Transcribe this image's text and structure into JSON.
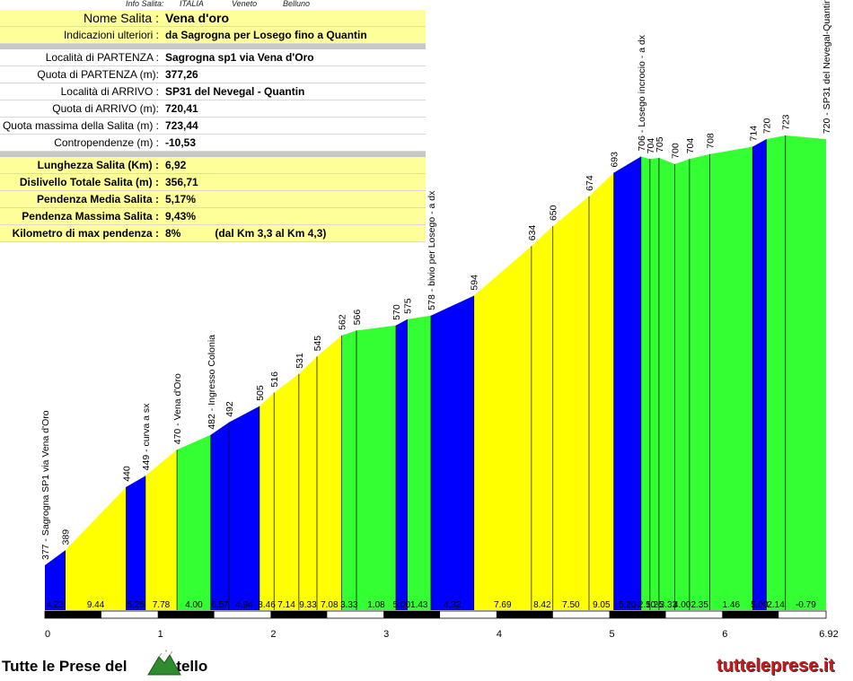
{
  "header": {
    "info_label": "Info Salita:",
    "country": "ITALIA",
    "region": "Veneto",
    "province": "Belluno"
  },
  "info": {
    "name_label": "Nome Salita :",
    "name": "Vena d'oro",
    "notes_label": "Indicazioni ulteriori :",
    "notes": "da Sagrogna per Losego fino a Quantin",
    "start_place_label": "Località di PARTENZA :",
    "start_place": "Sagrogna sp1 via Vena d'Oro",
    "start_alt_label": "Quota di PARTENZA (m):",
    "start_alt": "377,26",
    "end_place_label": "Località di ARRIVO :",
    "end_place": "SP31 del Nevegal - Quantin",
    "end_alt_label": "Quota di ARRIVO (m):",
    "end_alt": "720,41",
    "max_alt_label": "Quota massima della Salita (m) :",
    "max_alt": "723,44",
    "counter_label": "Contropendenze (m) :",
    "counter": "-10,53"
  },
  "stats": {
    "length_label": "Lunghezza Salita (Km) :",
    "length": "6,92",
    "gain_label": "Dislivello Totale Salita (m) :",
    "gain": "356,71",
    "avg_label": "Pendenza Media Salita :",
    "avg": "5,17%",
    "max_label": "Pendenza Massima Salita :",
    "max": "9,43%",
    "maxkm_label": "Kilometro di max pendenza :",
    "maxkm": "8%",
    "maxkm_range": "(dal Km 3,3 al Km 4,3)"
  },
  "footer": {
    "left_before": "Tutte le Prese del",
    "left_after": "ontello",
    "right": "tutteleprese.it"
  },
  "colors": {
    "blue": "#0000ff",
    "yellow": "#ffff00",
    "green": "#33ff33",
    "info_bg": "#ffff99",
    "footer_red": "#cc1a1a"
  },
  "chart_data": {
    "type": "area",
    "xlim": [
      0,
      6.92
    ],
    "x_ticks": [
      "0",
      "1",
      "2",
      "3",
      "4",
      "5",
      "6",
      "6.92"
    ],
    "x_tick_values": [
      0,
      1,
      2,
      3,
      4,
      5,
      6,
      6.92
    ],
    "ylim": [
      320,
      780
    ],
    "points": [
      {
        "x": 0.0,
        "y": 377,
        "label": "377 - Sagrogna SP1 via Vena d'Oro"
      },
      {
        "x": 0.18,
        "y": 389,
        "label": "389"
      },
      {
        "x": 0.72,
        "y": 440,
        "label": "440"
      },
      {
        "x": 0.89,
        "y": 449,
        "label": "449 - curva a sx"
      },
      {
        "x": 1.17,
        "y": 470,
        "label": "470 - Vena d'Oro"
      },
      {
        "x": 1.47,
        "y": 482,
        "label": "482 - Ingresso Colonia"
      },
      {
        "x": 1.63,
        "y": 492,
        "label": "492"
      },
      {
        "x": 1.9,
        "y": 505,
        "label": "505"
      },
      {
        "x": 2.03,
        "y": 516,
        "label": "516"
      },
      {
        "x": 2.25,
        "y": 531,
        "label": "531"
      },
      {
        "x": 2.41,
        "y": 545,
        "label": "545"
      },
      {
        "x": 2.63,
        "y": 562,
        "label": "562"
      },
      {
        "x": 2.76,
        "y": 566,
        "label": "566"
      },
      {
        "x": 3.11,
        "y": 570,
        "label": "570"
      },
      {
        "x": 3.21,
        "y": 575,
        "label": "575"
      },
      {
        "x": 3.42,
        "y": 578,
        "label": "578 - bivio per Losego - a dx"
      },
      {
        "x": 3.8,
        "y": 594,
        "label": "594"
      },
      {
        "x": 4.31,
        "y": 634,
        "label": "634"
      },
      {
        "x": 4.5,
        "y": 650,
        "label": "650"
      },
      {
        "x": 4.82,
        "y": 674,
        "label": "674"
      },
      {
        "x": 5.04,
        "y": 693,
        "label": "693"
      },
      {
        "x": 5.28,
        "y": 706,
        "label": "706 - Losego incrocio - a dx"
      },
      {
        "x": 5.36,
        "y": 704,
        "label": "704"
      },
      {
        "x": 5.44,
        "y": 705,
        "label": "705"
      },
      {
        "x": 5.58,
        "y": 700,
        "label": "700"
      },
      {
        "x": 5.71,
        "y": 704,
        "label": "704"
      },
      {
        "x": 5.89,
        "y": 708,
        "label": "708"
      },
      {
        "x": 6.27,
        "y": 714,
        "label": "714"
      },
      {
        "x": 6.39,
        "y": 720,
        "label": "720"
      },
      {
        "x": 6.56,
        "y": 723,
        "label": "723"
      },
      {
        "x": 6.92,
        "y": 720,
        "label": "720 - SP31 del Nevegal-Quantin"
      }
    ],
    "segments": [
      {
        "grade": "4.23",
        "color": "blue"
      },
      {
        "grade": "9.44",
        "color": "yellow"
      },
      {
        "grade": "5.25",
        "color": "blue"
      },
      {
        "grade": "7.78",
        "color": "yellow"
      },
      {
        "grade": "4.00",
        "color": "green"
      },
      {
        "grade": "6.57",
        "color": "blue"
      },
      {
        "grade": "4.94",
        "color": "blue"
      },
      {
        "grade": "8.46",
        "color": "yellow"
      },
      {
        "grade": "7.14",
        "color": "yellow"
      },
      {
        "grade": "9.33",
        "color": "yellow"
      },
      {
        "grade": "7.08",
        "color": "yellow"
      },
      {
        "grade": "3.33",
        "color": "green"
      },
      {
        "grade": "1.08",
        "color": "green"
      },
      {
        "grade": "5.00",
        "color": "blue"
      },
      {
        "grade": "1.43",
        "color": "green"
      },
      {
        "grade": "4.32",
        "color": "blue"
      },
      {
        "grade": "7.69",
        "color": "yellow"
      },
      {
        "grade": "8.42",
        "color": "yellow"
      },
      {
        "grade": "7.50",
        "color": "yellow"
      },
      {
        "grade": "9.05",
        "color": "yellow"
      },
      {
        "grade": "5.20",
        "color": "blue"
      },
      {
        "grade": "-2.50",
        "color": "green"
      },
      {
        "grade": "1.25",
        "color": "green"
      },
      {
        "grade": "-3.33",
        "color": "green"
      },
      {
        "grade": "4.00",
        "color": "green"
      },
      {
        "grade": "2.35",
        "color": "green"
      },
      {
        "grade": "1.46",
        "color": "green"
      },
      {
        "grade": "5.00",
        "color": "blue"
      },
      {
        "grade": "2.14",
        "color": "green"
      },
      {
        "grade": "-0.79",
        "color": "green"
      }
    ]
  }
}
